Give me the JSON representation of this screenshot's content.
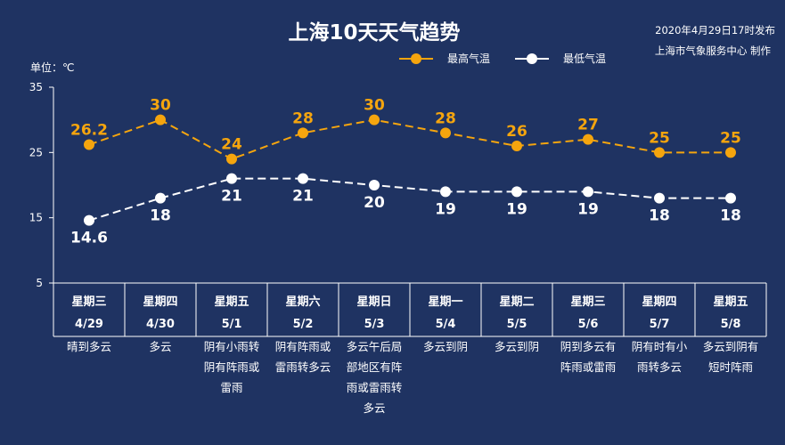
{
  "title": "上海10天天气趋势",
  "issued": "2020年4月29日17时发布",
  "producer": "上海市气象服务中心 制作",
  "colors": {
    "background": "#1f3362",
    "high": "#f5a50e",
    "low": "#ffffff",
    "axis": "#ffffff"
  },
  "chart_data": {
    "type": "line",
    "ylabel": "单位：℃",
    "ylim": [
      5,
      35
    ],
    "yticks": [
      5,
      15,
      25,
      35
    ],
    "categories": [
      {
        "day": "星期三",
        "date": "4/29",
        "weather": [
          "晴到多云"
        ]
      },
      {
        "day": "星期四",
        "date": "4/30",
        "weather": [
          "多云"
        ]
      },
      {
        "day": "星期五",
        "date": "5/1",
        "weather": [
          "阴有小雨转",
          "阴有阵雨或",
          "雷雨"
        ]
      },
      {
        "day": "星期六",
        "date": "5/2",
        "weather": [
          "阴有阵雨或",
          "雷雨转多云"
        ]
      },
      {
        "day": "星期日",
        "date": "5/3",
        "weather": [
          "多云午后局",
          "部地区有阵",
          "雨或雷雨转",
          "多云"
        ]
      },
      {
        "day": "星期一",
        "date": "5/4",
        "weather": [
          "多云到阴"
        ]
      },
      {
        "day": "星期二",
        "date": "5/5",
        "weather": [
          "多云到阴"
        ]
      },
      {
        "day": "星期三",
        "date": "5/6",
        "weather": [
          "阴到多云有",
          "阵雨或雷雨"
        ]
      },
      {
        "day": "星期四",
        "date": "5/7",
        "weather": [
          "阴有时有小",
          "雨转多云"
        ]
      },
      {
        "day": "星期五",
        "date": "5/8",
        "weather": [
          "多云到阴有",
          "短时阵雨"
        ]
      }
    ],
    "series": [
      {
        "name": "最高气温",
        "values": [
          26.2,
          30,
          24,
          28,
          30,
          28,
          26,
          27,
          25,
          25
        ],
        "labels": [
          "26.2",
          "30",
          "24",
          "28",
          "30",
          "28",
          "26",
          "27",
          "25",
          "25"
        ]
      },
      {
        "name": "最低气温",
        "values": [
          14.6,
          18,
          21,
          21,
          20,
          19,
          19,
          19,
          18,
          18
        ],
        "labels": [
          "14.6",
          "18",
          "21",
          "21",
          "20",
          "19",
          "19",
          "19",
          "18",
          "18"
        ]
      }
    ],
    "legend": "top-center",
    "grid": false
  }
}
